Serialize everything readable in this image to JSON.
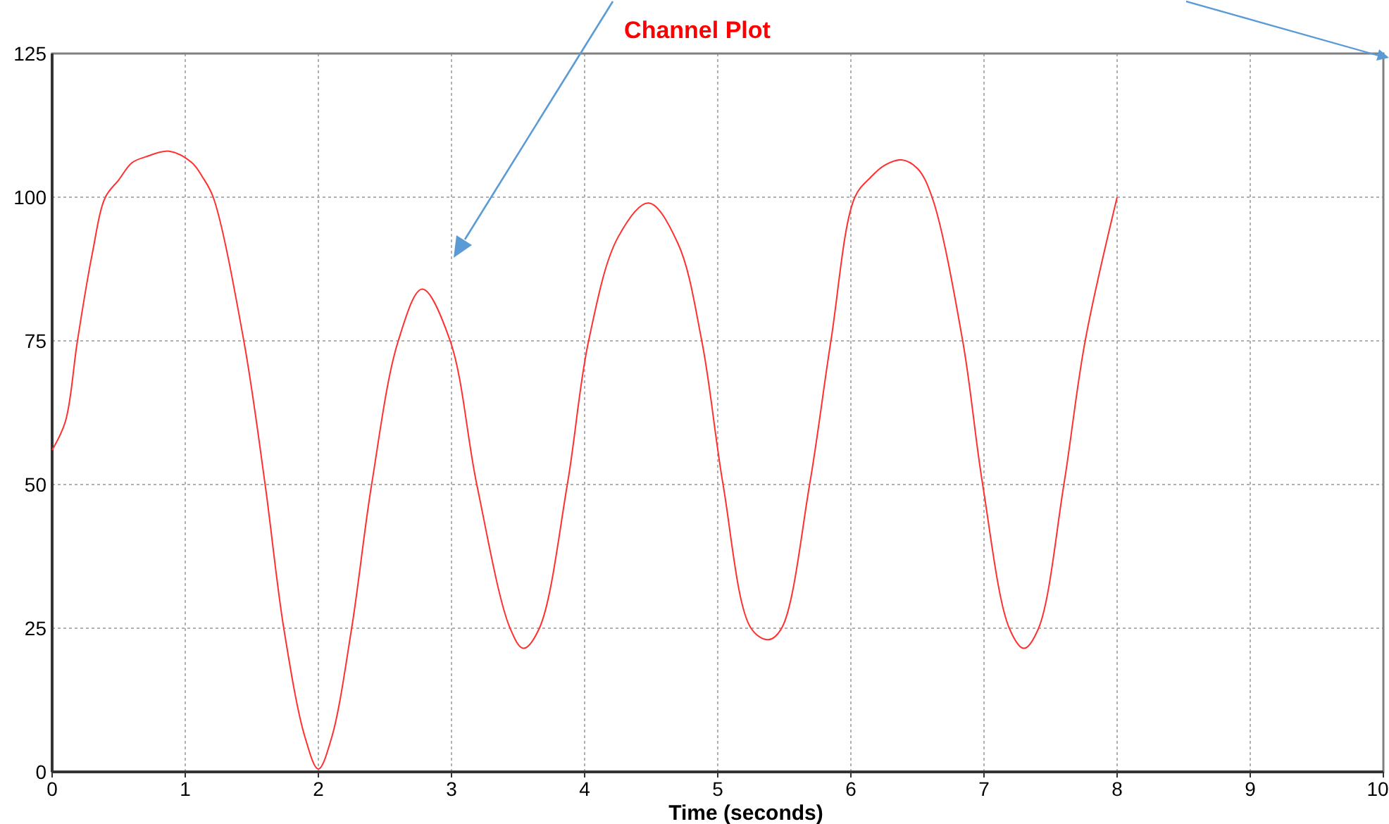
{
  "chart_data": {
    "type": "line",
    "title": "Channel Plot",
    "xlabel": "Time (seconds)",
    "xlim": [
      0,
      10
    ],
    "xticks": [
      0,
      1,
      2,
      3,
      4,
      5,
      6,
      7,
      8,
      9,
      10
    ],
    "ylim": [
      0,
      125
    ],
    "yticks": [
      0,
      25,
      50,
      75,
      100,
      125
    ],
    "grid": true,
    "line_style": "solid",
    "series": [
      {
        "color": "#ff3030",
        "x": [
          0,
          0.1,
          0.19,
          0.3,
          0.4,
          0.5,
          0.6,
          0.7,
          0.88,
          1.05,
          1.13,
          1.21,
          1.44,
          1.6,
          1.74,
          1.9,
          2.0,
          2.1,
          2.25,
          2.4,
          2.6,
          2.78,
          2.99,
          3.19,
          3.44,
          3.54,
          3.66,
          3.87,
          4.03,
          4.25,
          4.48,
          4.7,
          4.88,
          5.04,
          5.25,
          5.38,
          5.48,
          5.69,
          5.85,
          6.03,
          6.15,
          6.25,
          6.38,
          6.5,
          6.61,
          6.84,
          6.99,
          7.19,
          7.3,
          7.41,
          7.6,
          7.76,
          8.0
        ],
        "values": [
          56,
          61,
          75,
          90,
          100,
          103,
          106,
          107,
          108,
          106,
          103.5,
          100,
          75,
          50,
          25,
          6,
          0.5,
          6,
          25,
          50,
          75,
          84,
          75,
          50,
          25,
          21.5,
          25,
          50,
          75,
          93,
          99,
          92,
          75,
          50,
          25,
          23,
          25,
          50,
          75,
          100,
          103.5,
          105.5,
          106.5,
          105,
          100,
          75,
          50,
          25,
          21.5,
          25,
          50,
          75,
          100
        ]
      }
    ]
  }
}
